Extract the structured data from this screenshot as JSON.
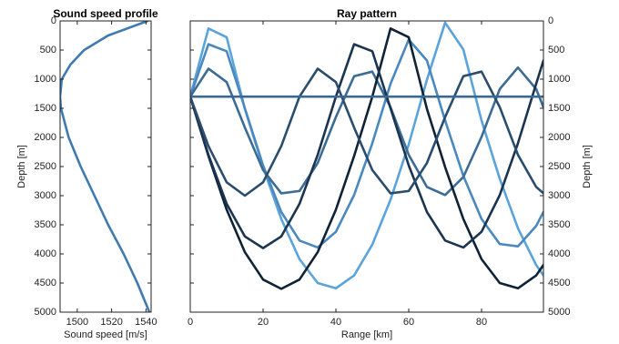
{
  "chart_data": [
    {
      "type": "line",
      "title": "Sound speed profile",
      "xlabel": "Sound speed [m/s]",
      "ylabel": "Depth [m]",
      "x": [
        1541,
        1518,
        1504,
        1496,
        1491,
        1490,
        1490.5,
        1495,
        1502,
        1510,
        1518,
        1527,
        1535,
        1542
      ],
      "series": [
        {
          "color": "#3f7ab0",
          "values": [
            0,
            250,
            500,
            750,
            1000,
            1300,
            1500,
            2000,
            2500,
            3000,
            3500,
            4000,
            4500,
            5000
          ]
        }
      ],
      "xlim": [
        1490,
        1543
      ],
      "xticks": [
        1500,
        1520,
        1540
      ],
      "ylim": [
        0,
        5000
      ],
      "yticks": [
        0,
        500,
        1000,
        1500,
        2000,
        2500,
        3000,
        3500,
        4000,
        4500,
        5000
      ],
      "y_reversed": true,
      "yaxis_side": "left"
    },
    {
      "type": "line",
      "title": "Ray pattern",
      "xlabel": "Range [km]",
      "ylabel": "Depth [m]",
      "x": [
        0,
        5,
        10,
        15,
        20,
        25,
        30,
        35,
        40,
        45,
        50,
        55,
        60,
        65,
        70,
        75,
        80,
        85,
        90,
        95,
        97
      ],
      "series": [
        {
          "color": "#5ba3db",
          "values": [
            1300,
            130,
            280,
            1510,
            2510,
            3400,
            4090,
            4500,
            4590,
            4370,
            3840,
            3070,
            2120,
            1010,
            30,
            490,
            1710,
            2710,
            3560,
            4190,
            4370
          ]
        },
        {
          "color": "#4a89bf",
          "values": [
            1300,
            400,
            520,
            1500,
            2480,
            3280,
            3770,
            3890,
            3620,
            2990,
            2100,
            1080,
            320,
            680,
            1710,
            2660,
            3400,
            3830,
            3870,
            3520,
            3280
          ]
        },
        {
          "color": "#3c6c95",
          "values": [
            1300,
            820,
            1050,
            1830,
            2560,
            2960,
            2920,
            2440,
            1650,
            950,
            870,
            1480,
            2300,
            2850,
            2990,
            2680,
            1990,
            1170,
            800,
            1170,
            1480
          ]
        },
        {
          "color": "#0f2236",
          "values": [
            1300,
            2320,
            3240,
            3970,
            4440,
            4600,
            4440,
            3970,
            3240,
            2320,
            1300,
            130,
            280,
            1510,
            2510,
            3400,
            4090,
            4500,
            4590,
            4370,
            4190
          ]
        },
        {
          "color": "#1b3450",
          "values": [
            1300,
            2300,
            3140,
            3700,
            3900,
            3700,
            3140,
            2300,
            1300,
            400,
            520,
            1500,
            2480,
            3280,
            3770,
            3890,
            3620,
            2990,
            2100,
            1080,
            680
          ]
        },
        {
          "color": "#2a4d6d",
          "values": [
            1300,
            2150,
            2770,
            3000,
            2770,
            2150,
            1300,
            820,
            1050,
            1830,
            2560,
            2960,
            2920,
            2440,
            1650,
            950,
            870,
            1480,
            2300,
            2850,
            2960
          ]
        },
        {
          "color": "#3a6890",
          "values": [
            1300,
            1300,
            1300,
            1300,
            1300,
            1300,
            1300,
            1300,
            1300,
            1300,
            1300,
            1300,
            1300,
            1300,
            1300,
            1300,
            1300,
            1300,
            1300,
            1300,
            1300
          ]
        }
      ],
      "xlim": [
        0,
        97
      ],
      "xticks": [
        0,
        20,
        40,
        60,
        80
      ],
      "ylim": [
        0,
        5000
      ],
      "yticks": [
        0,
        500,
        1000,
        1500,
        2000,
        2500,
        3000,
        3500,
        4000,
        4500,
        5000
      ],
      "y_reversed": true,
      "yaxis_side": "right"
    }
  ]
}
